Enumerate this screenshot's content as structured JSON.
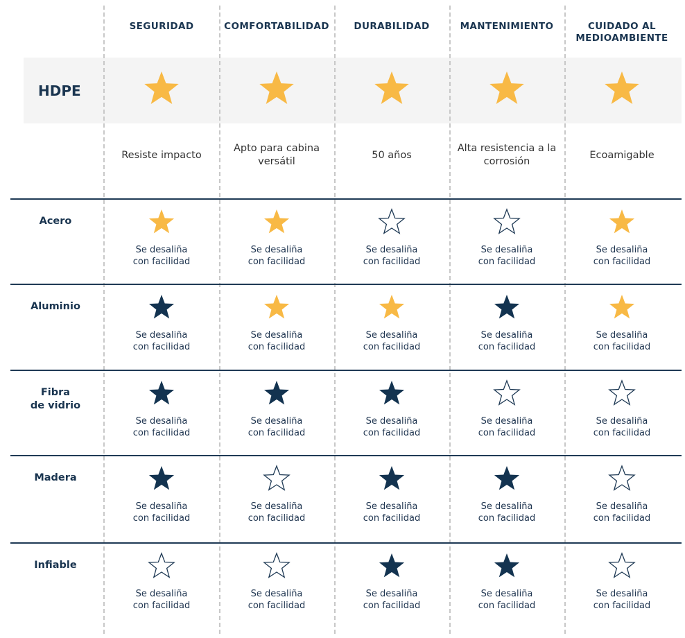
{
  "colors": {
    "star_gold": "#f8b945",
    "star_navy": "#133350",
    "star_outline": "#1f3a55",
    "header_band": "#f4f4f4",
    "rule": "#1f3a55",
    "dashed_divider": "#c8c8c8"
  },
  "columns": [
    {
      "lines": [
        "SEGURIDAD"
      ]
    },
    {
      "lines": [
        "COMFORTABILIDAD"
      ]
    },
    {
      "lines": [
        "DURABILIDAD"
      ]
    },
    {
      "lines": [
        "MANTENIMIENTO"
      ]
    },
    {
      "lines": [
        "CUIDADO AL",
        "MEDIOAMBIENTE"
      ]
    }
  ],
  "hdpe": {
    "label": "HDPE",
    "ratings": [
      "gold",
      "gold",
      "gold",
      "gold",
      "gold"
    ],
    "descriptions": [
      "Resiste impacto",
      "Apto para cabina versátil",
      "50 años",
      "Alta resistencia a la corrosión",
      "Ecoamigable"
    ]
  },
  "rows": [
    {
      "label_lines": [
        "Acero"
      ],
      "ratings": [
        "gold",
        "gold",
        "empty",
        "empty",
        "gold"
      ],
      "notes": [
        [
          "Se desaliña",
          "con facilidad"
        ],
        [
          "Se desaliña",
          "con facilidad"
        ],
        [
          "Se desaliña",
          "con facilidad"
        ],
        [
          "Se desaliña",
          "con facilidad"
        ],
        [
          "Se desaliña",
          "con facilidad"
        ]
      ]
    },
    {
      "label_lines": [
        "Aluminio"
      ],
      "ratings": [
        "navy",
        "gold",
        "gold",
        "navy",
        "gold"
      ],
      "notes": [
        [
          "Se desaliña",
          "con facilidad"
        ],
        [
          "Se desaliña",
          "con facilidad"
        ],
        [
          "Se desaliña",
          "con facilidad"
        ],
        [
          "Se desaliña",
          "con facilidad"
        ],
        [
          "Se desaliña",
          "con facilidad"
        ]
      ]
    },
    {
      "label_lines": [
        "Fibra",
        "de vidrio"
      ],
      "ratings": [
        "navy",
        "navy",
        "navy",
        "empty",
        "empty"
      ],
      "notes": [
        [
          "Se desaliña",
          "con facilidad"
        ],
        [
          "Se desaliña",
          "con facilidad"
        ],
        [
          "Se desaliña",
          "con facilidad"
        ],
        [
          "Se desaliña",
          "con facilidad"
        ],
        [
          "Se desaliña",
          "con facilidad"
        ]
      ]
    },
    {
      "label_lines": [
        "Madera"
      ],
      "ratings": [
        "navy",
        "empty",
        "navy",
        "navy",
        "empty"
      ],
      "notes": [
        [
          "Se desaliña",
          "con facilidad"
        ],
        [
          "Se desaliña",
          "con facilidad"
        ],
        [
          "Se desaliña",
          "con facilidad"
        ],
        [
          "Se desaliña",
          "con facilidad"
        ],
        [
          "Se desaliña",
          "con facilidad"
        ]
      ]
    },
    {
      "label_lines": [
        "Infiable"
      ],
      "ratings": [
        "empty",
        "empty",
        "navy",
        "navy",
        "empty"
      ],
      "notes": [
        [
          "Se desaliña",
          "con facilidad"
        ],
        [
          "Se desaliña",
          "con facilidad"
        ],
        [
          "Se desaliña",
          "con facilidad"
        ],
        [
          "Se desaliña",
          "con facilidad"
        ],
        [
          "Se desaliña",
          "con facilidad"
        ]
      ]
    }
  ]
}
